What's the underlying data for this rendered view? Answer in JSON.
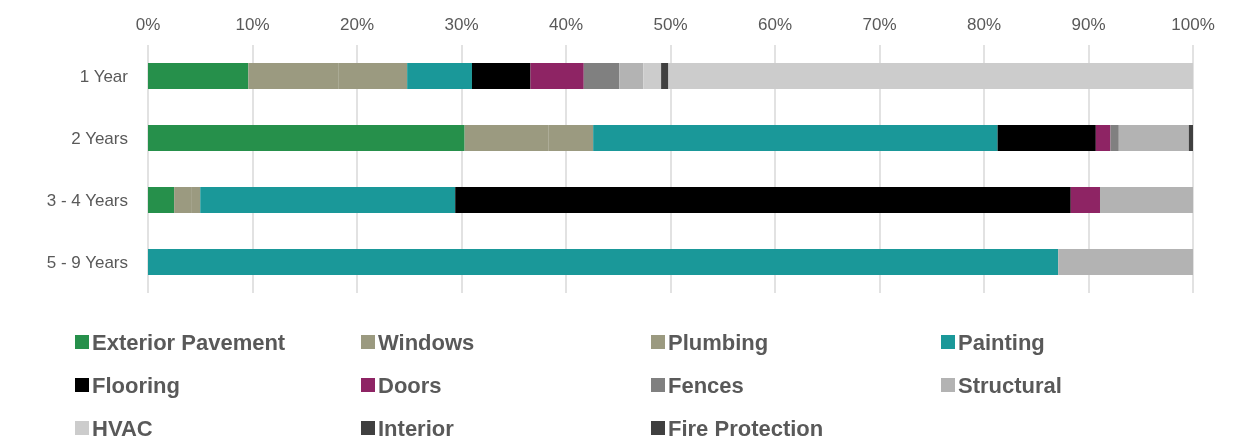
{
  "chart_data": {
    "type": "bar",
    "orientation": "horizontal",
    "stacked": true,
    "categories": [
      "1 Year",
      "2 Years",
      "3 - 4 Years",
      "5 - 9 Years"
    ],
    "xlim": [
      0,
      100
    ],
    "xticks": [
      {
        "value": 0,
        "label": "0%"
      },
      {
        "value": 10,
        "label": "10%"
      },
      {
        "value": 20,
        "label": "20%"
      },
      {
        "value": 30,
        "label": "30%"
      },
      {
        "value": 40,
        "label": "40%"
      },
      {
        "value": 50,
        "label": "50%"
      },
      {
        "value": 60,
        "label": "60%"
      },
      {
        "value": 70,
        "label": "70%"
      },
      {
        "value": 80,
        "label": "80%"
      },
      {
        "value": 90,
        "label": "90%"
      },
      {
        "value": 100,
        "label": "100%"
      }
    ],
    "grid": "x",
    "legend": "bottom",
    "series": [
      {
        "name": "Exterior Pavement",
        "color": "#26904b",
        "values": [
          9.6,
          30.3,
          2.5,
          0
        ]
      },
      {
        "name": "Windows",
        "color": "#9b9a80",
        "values": [
          8.6,
          8.0,
          1.7,
          0
        ]
      },
      {
        "name": "Plumbing",
        "color": "#9b9a80",
        "values": [
          6.6,
          4.3,
          0.8,
          0
        ]
      },
      {
        "name": "Painting",
        "color": "#1a9899",
        "values": [
          6.2,
          38.7,
          24.4,
          87.1
        ]
      },
      {
        "name": "Flooring",
        "color": "#000000",
        "values": [
          5.6,
          9.4,
          58.9,
          0
        ]
      },
      {
        "name": "Doors",
        "color": "#8e2464",
        "values": [
          5.1,
          1.4,
          2.8,
          0
        ]
      },
      {
        "name": "Fences",
        "color": "#808080",
        "values": [
          3.4,
          0.8,
          0,
          0
        ]
      },
      {
        "name": "Structural",
        "color": "#b3b3b3",
        "values": [
          2.3,
          6.7,
          8.9,
          12.9
        ]
      },
      {
        "name": "HVAC",
        "color": "#cccccc",
        "values": [
          1.7,
          0,
          0,
          0
        ]
      },
      {
        "name": "Interior",
        "color": "#404040",
        "values": [
          0.7,
          0.4,
          0,
          0
        ]
      },
      {
        "name": "Fire Protection",
        "color": "#404040",
        "values": [
          0,
          0,
          0,
          0
        ]
      },
      {
        "color": "#cccccc",
        "values": [
          50.2,
          0,
          0,
          0
        ]
      }
    ]
  }
}
